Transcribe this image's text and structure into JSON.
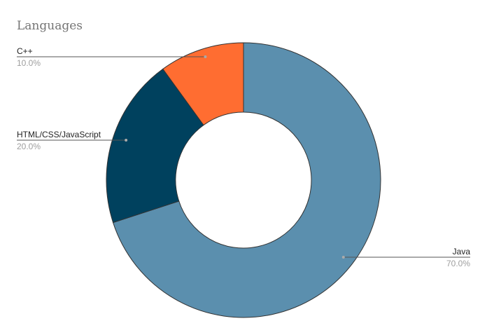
{
  "chart_data": {
    "type": "pie",
    "variant": "donut",
    "title": "Languages",
    "slices": [
      {
        "label": "Java",
        "value": 70.0,
        "percent_label": "70.0%",
        "color": "#5b8fae"
      },
      {
        "label": "HTML/CSS/JavaScript",
        "value": 20.0,
        "percent_label": "20.0%",
        "color": "#00415e"
      },
      {
        "label": "C++",
        "value": 10.0,
        "percent_label": "10.0%",
        "color": "#ff6d31"
      }
    ],
    "start_angle_deg": 0,
    "direction": "clockwise",
    "legend": "none",
    "label_style": "leader-lines"
  }
}
